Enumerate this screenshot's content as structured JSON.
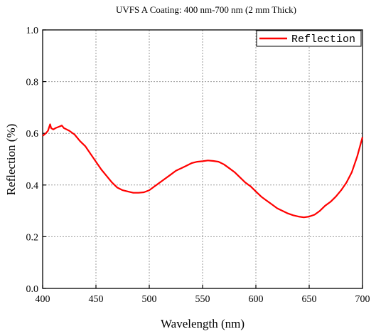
{
  "chart_data": {
    "type": "line",
    "title": "UVFS A Coating: 400 nm-700 nm (2 mm Thick)",
    "xlabel": "Wavelength (nm)",
    "ylabel": "Reflection (%)",
    "xlim": [
      400,
      700
    ],
    "ylim": [
      0.0,
      1.0
    ],
    "xticks": [
      "400",
      "450",
      "500",
      "550",
      "600",
      "650",
      "700"
    ],
    "yticks": [
      "0.0",
      "0.2",
      "0.4",
      "0.6",
      "0.8",
      "1.0"
    ],
    "grid": true,
    "legend_position": "top-right",
    "series": [
      {
        "name": "Reflection",
        "color": "#ff0000",
        "x": [
          400,
          403,
          405,
          407,
          408,
          410,
          412,
          415,
          418,
          420,
          425,
          430,
          435,
          440,
          445,
          450,
          455,
          460,
          465,
          470,
          475,
          480,
          485,
          490,
          495,
          500,
          505,
          510,
          515,
          520,
          525,
          530,
          535,
          540,
          545,
          550,
          555,
          560,
          565,
          570,
          575,
          580,
          585,
          590,
          595,
          600,
          605,
          610,
          615,
          620,
          625,
          630,
          635,
          640,
          645,
          650,
          655,
          660,
          665,
          670,
          675,
          680,
          685,
          690,
          695,
          700
        ],
        "y": [
          0.59,
          0.6,
          0.61,
          0.635,
          0.62,
          0.615,
          0.62,
          0.625,
          0.63,
          0.62,
          0.61,
          0.595,
          0.57,
          0.55,
          0.52,
          0.49,
          0.46,
          0.435,
          0.41,
          0.39,
          0.38,
          0.375,
          0.37,
          0.37,
          0.372,
          0.38,
          0.395,
          0.41,
          0.425,
          0.44,
          0.455,
          0.465,
          0.475,
          0.485,
          0.49,
          0.492,
          0.495,
          0.493,
          0.49,
          0.48,
          0.465,
          0.45,
          0.43,
          0.41,
          0.395,
          0.375,
          0.355,
          0.34,
          0.325,
          0.31,
          0.3,
          0.29,
          0.283,
          0.278,
          0.275,
          0.278,
          0.285,
          0.3,
          0.32,
          0.335,
          0.355,
          0.38,
          0.41,
          0.45,
          0.51,
          0.585
        ]
      }
    ]
  }
}
